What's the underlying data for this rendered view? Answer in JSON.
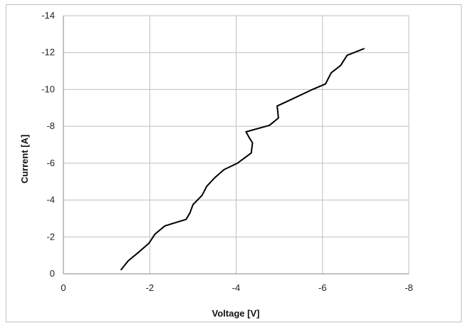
{
  "chart_data": {
    "type": "line",
    "title": "",
    "xlabel": "Voltage [V]",
    "ylabel": "Current [A]",
    "xlim": [
      0,
      -8
    ],
    "ylim": [
      0,
      -14
    ],
    "x_ticks": [
      0,
      -2,
      -4,
      -6,
      -8
    ],
    "y_ticks": [
      0,
      -2,
      -4,
      -6,
      -8,
      -10,
      -12,
      -14
    ],
    "x_tick_labels": [
      "0",
      "-2",
      "-4",
      "-6",
      "-8"
    ],
    "y_tick_labels": [
      "0",
      "-2",
      "-4",
      "-6",
      "-8",
      "-10",
      "-12",
      "-14"
    ],
    "grid": true,
    "legend": "none",
    "line_color": "#000000",
    "grid_color": "#bfbfbf",
    "series": [
      {
        "x": [
          -1.33,
          -1.5,
          -1.73,
          -1.98,
          -2.12,
          -2.35,
          -2.84,
          -2.93,
          -3.0,
          -3.21,
          -3.32,
          -3.5,
          -3.72,
          -4.03,
          -4.35,
          -4.38,
          -4.3,
          -4.23,
          -4.77,
          -4.98,
          -4.95,
          -5.27,
          -5.77,
          -6.07,
          -6.2,
          -6.42,
          -6.57,
          -6.97
        ],
        "y": [
          -0.2,
          -0.7,
          -1.15,
          -1.65,
          -2.15,
          -2.6,
          -2.95,
          -3.3,
          -3.75,
          -4.25,
          -4.75,
          -5.2,
          -5.65,
          -6.0,
          -6.55,
          -7.1,
          -7.4,
          -7.7,
          -8.05,
          -8.45,
          -9.1,
          -9.45,
          -10.0,
          -10.3,
          -10.9,
          -11.3,
          -11.85,
          -12.22
        ]
      }
    ]
  }
}
